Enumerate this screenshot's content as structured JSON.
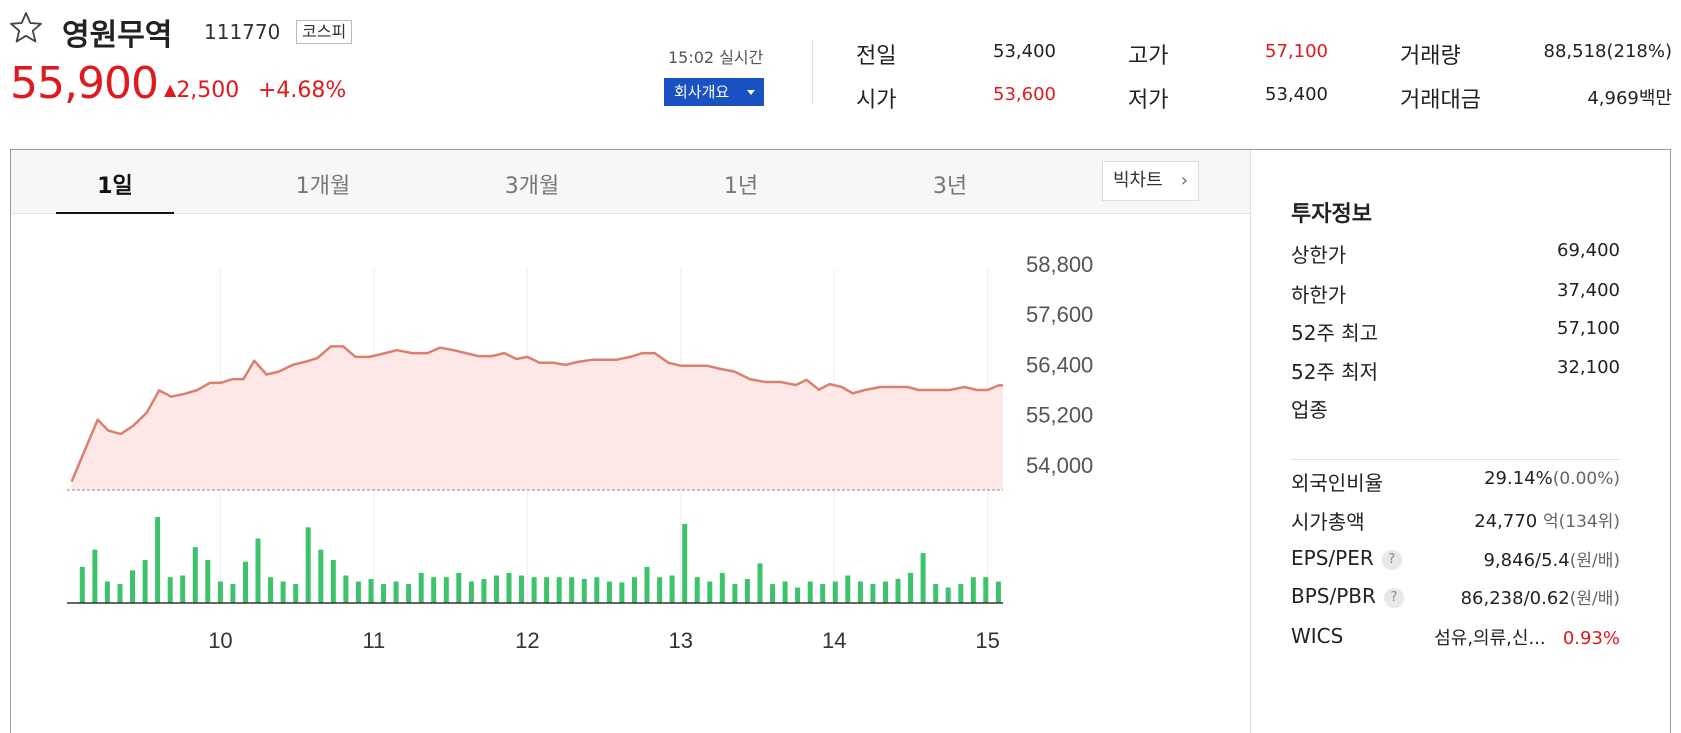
{
  "stock": {
    "name": "영원무역",
    "code": "111770",
    "market": "코스피",
    "price": "55,900",
    "change_arrow": "▲",
    "change": "2,500",
    "change_pct": "+4.68%",
    "realtime": "15:02 실시간",
    "company_button": "회사개요"
  },
  "summary": [
    {
      "label": "전일",
      "value": "53,400",
      "color": "normal"
    },
    {
      "label": "고가",
      "value": "57,100",
      "color": "red"
    },
    {
      "label": "거래량",
      "value": "88,518(218%)",
      "color": "normal"
    },
    {
      "label": "시가",
      "value": "53,600",
      "color": "red"
    },
    {
      "label": "저가",
      "value": "53,400",
      "color": "normal"
    },
    {
      "label": "거래대금",
      "value": "4,969백만",
      "color": "normal"
    }
  ],
  "tabs": [
    "1일",
    "1개월",
    "3개월",
    "1년",
    "3년"
  ],
  "active_tab": "1일",
  "big_chart": "빅차트",
  "chart_data": {
    "type": "area",
    "y_ticks": [
      "58,800",
      "57,600",
      "56,400",
      "55,200",
      "54,000"
    ],
    "x_ticks": [
      "10",
      "11",
      "12",
      "13",
      "14",
      "15"
    ],
    "ylim": [
      53400,
      58800
    ],
    "baseline": 53400,
    "x_range": [
      9.0,
      15.1
    ],
    "colors": {
      "line": "#d9806e",
      "fill": "#fde8e7",
      "volume": "#3cc36c",
      "baseline": "#888"
    },
    "series": [
      {
        "x": 9.03,
        "y": 53600
      },
      {
        "x": 9.2,
        "y": 55080
      },
      {
        "x": 9.27,
        "y": 54820
      },
      {
        "x": 9.35,
        "y": 54740
      },
      {
        "x": 9.43,
        "y": 54930
      },
      {
        "x": 9.52,
        "y": 55250
      },
      {
        "x": 9.6,
        "y": 55780
      },
      {
        "x": 9.68,
        "y": 55630
      },
      {
        "x": 9.77,
        "y": 55700
      },
      {
        "x": 9.85,
        "y": 55790
      },
      {
        "x": 9.93,
        "y": 55960
      },
      {
        "x": 10.0,
        "y": 55960
      },
      {
        "x": 10.08,
        "y": 56050
      },
      {
        "x": 10.15,
        "y": 56050
      },
      {
        "x": 10.22,
        "y": 56490
      },
      {
        "x": 10.3,
        "y": 56160
      },
      {
        "x": 10.38,
        "y": 56230
      },
      {
        "x": 10.47,
        "y": 56390
      },
      {
        "x": 10.55,
        "y": 56460
      },
      {
        "x": 10.63,
        "y": 56550
      },
      {
        "x": 10.72,
        "y": 56830
      },
      {
        "x": 10.8,
        "y": 56830
      },
      {
        "x": 10.88,
        "y": 56580
      },
      {
        "x": 10.97,
        "y": 56580
      },
      {
        "x": 11.05,
        "y": 56650
      },
      {
        "x": 11.15,
        "y": 56740
      },
      {
        "x": 11.25,
        "y": 56670
      },
      {
        "x": 11.35,
        "y": 56670
      },
      {
        "x": 11.43,
        "y": 56800
      },
      {
        "x": 11.52,
        "y": 56740
      },
      {
        "x": 11.6,
        "y": 56670
      },
      {
        "x": 11.68,
        "y": 56600
      },
      {
        "x": 11.77,
        "y": 56600
      },
      {
        "x": 11.85,
        "y": 56670
      },
      {
        "x": 11.93,
        "y": 56530
      },
      {
        "x": 12.0,
        "y": 56580
      },
      {
        "x": 12.08,
        "y": 56440
      },
      {
        "x": 12.17,
        "y": 56440
      },
      {
        "x": 12.25,
        "y": 56390
      },
      {
        "x": 12.33,
        "y": 56460
      },
      {
        "x": 12.42,
        "y": 56510
      },
      {
        "x": 12.5,
        "y": 56510
      },
      {
        "x": 12.58,
        "y": 56510
      },
      {
        "x": 12.67,
        "y": 56580
      },
      {
        "x": 12.75,
        "y": 56670
      },
      {
        "x": 12.83,
        "y": 56670
      },
      {
        "x": 12.92,
        "y": 56440
      },
      {
        "x": 13.0,
        "y": 56370
      },
      {
        "x": 13.08,
        "y": 56370
      },
      {
        "x": 13.17,
        "y": 56370
      },
      {
        "x": 13.25,
        "y": 56300
      },
      {
        "x": 13.35,
        "y": 56230
      },
      {
        "x": 13.45,
        "y": 56050
      },
      {
        "x": 13.55,
        "y": 55980
      },
      {
        "x": 13.65,
        "y": 55980
      },
      {
        "x": 13.75,
        "y": 55910
      },
      {
        "x": 13.82,
        "y": 56030
      },
      {
        "x": 13.9,
        "y": 55800
      },
      {
        "x": 13.97,
        "y": 55930
      },
      {
        "x": 14.05,
        "y": 55860
      },
      {
        "x": 14.12,
        "y": 55710
      },
      {
        "x": 14.2,
        "y": 55790
      },
      {
        "x": 14.3,
        "y": 55860
      },
      {
        "x": 14.4,
        "y": 55860
      },
      {
        "x": 14.48,
        "y": 55860
      },
      {
        "x": 14.55,
        "y": 55790
      },
      {
        "x": 14.65,
        "y": 55790
      },
      {
        "x": 14.75,
        "y": 55790
      },
      {
        "x": 14.85,
        "y": 55860
      },
      {
        "x": 14.93,
        "y": 55790
      },
      {
        "x": 15.0,
        "y": 55790
      },
      {
        "x": 15.07,
        "y": 55900
      },
      {
        "x": 15.1,
        "y": 55900
      }
    ],
    "volume": [
      0.42,
      0.62,
      0.25,
      0.22,
      0.38,
      0.5,
      1.0,
      0.3,
      0.32,
      0.65,
      0.5,
      0.25,
      0.22,
      0.48,
      0.75,
      0.3,
      0.25,
      0.22,
      0.88,
      0.62,
      0.5,
      0.32,
      0.25,
      0.28,
      0.22,
      0.25,
      0.22,
      0.35,
      0.3,
      0.3,
      0.35,
      0.25,
      0.28,
      0.32,
      0.35,
      0.32,
      0.3,
      0.3,
      0.3,
      0.3,
      0.28,
      0.3,
      0.25,
      0.24,
      0.3,
      0.42,
      0.3,
      0.32,
      0.92,
      0.3,
      0.25,
      0.35,
      0.22,
      0.28,
      0.46,
      0.22,
      0.25,
      0.18,
      0.25,
      0.22,
      0.25,
      0.32,
      0.25,
      0.22,
      0.25,
      0.28,
      0.35,
      0.58,
      0.22,
      0.18,
      0.22,
      0.3,
      0.3,
      0.25
    ]
  },
  "invest": {
    "title": "투자정보",
    "rows": [
      {
        "label": "상한가",
        "value": "69,400",
        "color": "red"
      },
      {
        "label": "하한가",
        "value": "37,400",
        "color": "blue"
      },
      {
        "label": "52주 최고",
        "value": "57,100",
        "color": "normal"
      },
      {
        "label": "52주 최저",
        "value": "32,100",
        "color": "normal"
      },
      {
        "label": "업종",
        "value": "",
        "color": "normal"
      }
    ],
    "foreign_label": "외국인비율",
    "foreign_value": "29.14%",
    "foreign_sub": "(0.00%)",
    "mktcap_label": "시가총액",
    "mktcap_value": "24,770",
    "mktcap_sub": "억(134위)",
    "eps_label": "EPS/PER",
    "eps_value": "9,846/5.4",
    "eps_sub": "(원/배)",
    "bps_label": "BPS/PBR",
    "bps_value": "86,238/0.62",
    "bps_sub": "(원/배)",
    "wics_label": "WICS",
    "wics_value": "섬유,의류,신...",
    "wics_pct": "0.93%",
    "help": "?"
  }
}
